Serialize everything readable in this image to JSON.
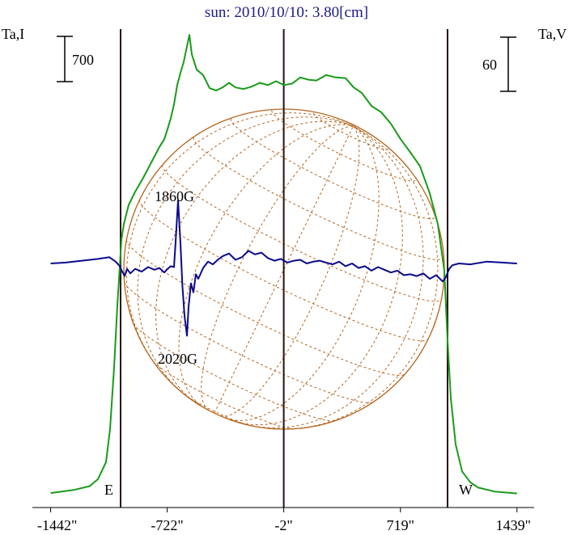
{
  "chart_data": {
    "type": "line",
    "title": "sun: 2010/10/10: 3.80[cm]",
    "left_axis_label": "Ta,I",
    "right_axis_label": "Ta,V",
    "left_scale_bar": "700",
    "right_scale_bar": "60",
    "x_ticks": [
      {
        "value": -1442,
        "label": "-1442\""
      },
      {
        "value": -722,
        "label": "-722\""
      },
      {
        "value": -2,
        "label": "-2\""
      },
      {
        "value": 719,
        "label": "719\""
      },
      {
        "value": 1439,
        "label": "1439\""
      }
    ],
    "limb_labels": {
      "east": "E",
      "west": "W"
    },
    "annotations": [
      {
        "text": "1860G",
        "x": -640,
        "y_v": 60
      },
      {
        "text": "2020G",
        "x": -620,
        "y_v": -80
      }
    ],
    "limb_positions": [
      -1010,
      1010
    ],
    "center_position": -2,
    "solar_disk": {
      "center_x": 0,
      "radius": 990,
      "grid": "dashed"
    },
    "series": [
      {
        "name": "Ta,I",
        "color": "#1a9a1a",
        "x": [
          -1442,
          -1300,
          -1200,
          -1150,
          -1100,
          -1075,
          -1050,
          -1030,
          -1015,
          -1005,
          -990,
          -960,
          -920,
          -870,
          -820,
          -770,
          -740,
          -720,
          -700,
          -680,
          -660,
          -640,
          -620,
          -600,
          -585,
          -570,
          -540,
          -500,
          -460,
          -420,
          -380,
          -340,
          -300,
          -250,
          -200,
          -150,
          -100,
          -50,
          0,
          50,
          100,
          150,
          200,
          260,
          320,
          380,
          430,
          480,
          540,
          600,
          660,
          720,
          780,
          840,
          900,
          950,
          990,
          1010,
          1030,
          1060,
          1100,
          1150,
          1200,
          1300,
          1439
        ],
        "y": [
          20,
          60,
          110,
          200,
          420,
          850,
          1650,
          2450,
          2950,
          3300,
          3500,
          3750,
          3920,
          4100,
          4300,
          4500,
          4600,
          4730,
          4870,
          5050,
          5300,
          5460,
          5600,
          5800,
          5950,
          5700,
          5500,
          5430,
          5260,
          5230,
          5270,
          5330,
          5270,
          5250,
          5280,
          5330,
          5300,
          5350,
          5300,
          5320,
          5400,
          5370,
          5360,
          5430,
          5400,
          5390,
          5270,
          5200,
          5030,
          4950,
          4800,
          4600,
          4430,
          4250,
          3900,
          3500,
          2900,
          2000,
          1250,
          650,
          300,
          160,
          90,
          40,
          15
        ]
      },
      {
        "name": "Ta,V",
        "color": "#0a0a8c",
        "x": [
          -1442,
          -1350,
          -1250,
          -1150,
          -1080,
          -1040,
          -1015,
          -1000,
          -985,
          -970,
          -950,
          -920,
          -880,
          -840,
          -800,
          -770,
          -740,
          -720,
          -700,
          -680,
          -668,
          -655,
          -640,
          -628,
          -615,
          -600,
          -590,
          -575,
          -560,
          -545,
          -530,
          -500,
          -470,
          -440,
          -410,
          -380,
          -340,
          -300,
          -260,
          -220,
          -180,
          -140,
          -100,
          -60,
          -20,
          20,
          60,
          100,
          140,
          180,
          220,
          260,
          300,
          340,
          380,
          420,
          460,
          500,
          540,
          580,
          620,
          660,
          700,
          740,
          780,
          820,
          860,
          900,
          940,
          980,
          1000,
          1020,
          1040,
          1080,
          1150,
          1250,
          1350,
          1439
        ],
        "y": [
          0,
          1,
          3,
          5,
          7,
          2,
          -3,
          -9,
          -14,
          -6,
          -11,
          -6,
          -9,
          -4,
          -7,
          -5,
          -10,
          -6,
          -3,
          -4,
          30,
          70,
          22,
          -25,
          -58,
          -80,
          -48,
          -22,
          -32,
          -12,
          -17,
          -5,
          2,
          -1,
          4,
          8,
          11,
          4,
          7,
          14,
          10,
          12,
          6,
          3,
          5,
          1,
          3,
          4,
          0,
          2,
          3,
          1,
          -1,
          2,
          -3,
          0,
          -5,
          -3,
          -8,
          -4,
          -7,
          -10,
          -8,
          -13,
          -12,
          -14,
          -11,
          -17,
          -13,
          -20,
          -15,
          -6,
          -2,
          0,
          -1,
          2,
          1,
          0
        ]
      }
    ],
    "grid": false
  }
}
